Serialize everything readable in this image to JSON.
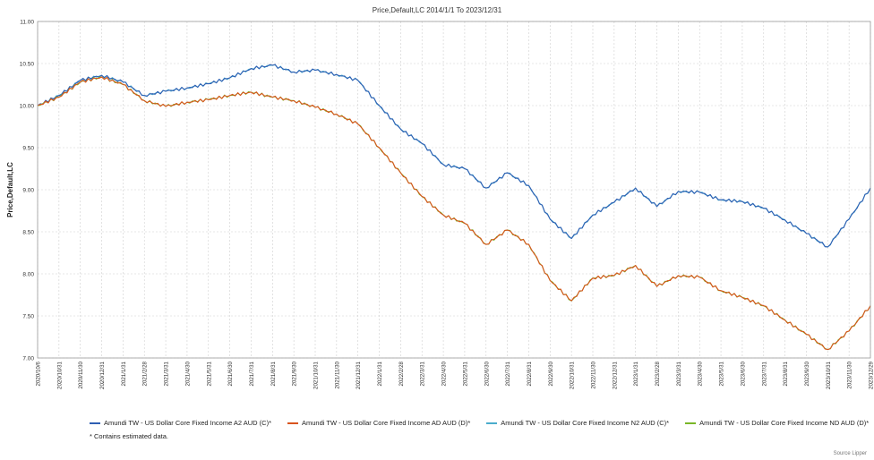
{
  "chart_data": {
    "type": "line",
    "title": "Price,Default,LC 2014/1/1 To 2023/12/31",
    "xlabel": "",
    "ylabel": "Price,Default,LC",
    "ylim": [
      7.0,
      11.0
    ],
    "yticks": [
      "11.00",
      "10.50",
      "10.00",
      "9.50",
      "9.00",
      "8.50",
      "8.00",
      "7.50",
      "7.00"
    ],
    "xticks": [
      "2020/10/6",
      "2020/10/31",
      "2020/11/30",
      "2020/12/31",
      "2021/1/31",
      "2021/2/28",
      "2021/3/31",
      "2021/4/30",
      "2021/5/31",
      "2021/6/30",
      "2021/7/31",
      "2021/8/31",
      "2021/9/30",
      "2021/10/31",
      "2021/11/30",
      "2021/12/31",
      "2022/1/31",
      "2022/2/28",
      "2022/3/31",
      "2022/4/30",
      "2022/5/31",
      "2022/6/30",
      "2022/7/31",
      "2022/8/31",
      "2022/9/30",
      "2022/10/31",
      "2022/11/30",
      "2022/12/31",
      "2023/1/31",
      "2023/2/28",
      "2023/3/31",
      "2023/4/30",
      "2023/5/31",
      "2023/6/30",
      "2023/7/31",
      "2023/8/31",
      "2023/9/30",
      "2023/10/31",
      "2023/11/30",
      "2023/12/29"
    ],
    "grid": true,
    "legend_position": "bottom",
    "x": [
      "2020/10/6",
      "2020/10/31",
      "2020/11/30",
      "2020/12/31",
      "2021/1/31",
      "2021/2/28",
      "2021/3/31",
      "2021/4/30",
      "2021/5/31",
      "2021/6/30",
      "2021/7/31",
      "2021/8/31",
      "2021/9/30",
      "2021/10/31",
      "2021/11/30",
      "2021/12/31",
      "2022/1/31",
      "2022/2/28",
      "2022/3/31",
      "2022/4/30",
      "2022/5/31",
      "2022/6/30",
      "2022/7/31",
      "2022/8/31",
      "2022/9/30",
      "2022/10/31",
      "2022/11/30",
      "2022/12/31",
      "2023/1/31",
      "2023/2/28",
      "2023/3/31",
      "2023/4/30",
      "2023/5/31",
      "2023/6/30",
      "2023/7/31",
      "2023/8/31",
      "2023/9/30",
      "2023/10/31",
      "2023/11/30",
      "2023/12/29"
    ],
    "series": [
      {
        "name": "Amundi TW - US Dollar Core Fixed Income A2 AUD (C)*",
        "color": "#2f5fb3",
        "values": [
          10.0,
          10.12,
          10.3,
          10.36,
          10.28,
          10.12,
          10.17,
          10.21,
          10.26,
          10.33,
          10.44,
          10.48,
          10.4,
          10.42,
          10.37,
          10.3,
          10.0,
          9.72,
          9.55,
          9.3,
          9.25,
          9.02,
          9.2,
          9.05,
          8.65,
          8.42,
          8.7,
          8.85,
          9.02,
          8.8,
          8.98,
          8.97,
          8.88,
          8.86,
          8.78,
          8.64,
          8.48,
          8.32,
          8.65,
          9.02
        ]
      },
      {
        "name": "Amundi TW - US Dollar Core Fixed Income AD AUD (D)*",
        "color": "#d9541e",
        "values": [
          10.0,
          10.1,
          10.28,
          10.34,
          10.25,
          10.06,
          9.99,
          10.04,
          10.07,
          10.12,
          10.16,
          10.1,
          10.06,
          9.98,
          9.9,
          9.78,
          9.5,
          9.2,
          8.92,
          8.7,
          8.6,
          8.35,
          8.52,
          8.35,
          7.92,
          7.68,
          7.95,
          7.98,
          8.1,
          7.85,
          7.98,
          7.96,
          7.8,
          7.72,
          7.62,
          7.45,
          7.28,
          7.1,
          7.32,
          7.62
        ]
      },
      {
        "name": "Amundi TW - US Dollar Core Fixed Income N2 AUD (C)*",
        "color": "#4aaccc",
        "values": [
          10.0,
          10.12,
          10.3,
          10.36,
          10.28,
          10.12,
          10.17,
          10.21,
          10.26,
          10.33,
          10.44,
          10.48,
          10.4,
          10.42,
          10.37,
          10.3,
          10.0,
          9.72,
          9.55,
          9.3,
          9.25,
          9.02,
          9.2,
          9.05,
          8.65,
          8.42,
          8.7,
          8.85,
          9.02,
          8.8,
          8.98,
          8.97,
          8.88,
          8.86,
          8.78,
          8.64,
          8.48,
          8.32,
          8.65,
          9.02
        ]
      },
      {
        "name": "Amundi TW - US Dollar Core Fixed Income ND AUD (D)*",
        "color": "#7ab628",
        "values": [
          10.0,
          10.1,
          10.28,
          10.34,
          10.25,
          10.06,
          9.99,
          10.04,
          10.07,
          10.12,
          10.16,
          10.1,
          10.06,
          9.98,
          9.9,
          9.78,
          9.5,
          9.2,
          8.92,
          8.7,
          8.6,
          8.35,
          8.52,
          8.35,
          7.92,
          7.68,
          7.95,
          7.98,
          8.1,
          7.85,
          7.98,
          7.96,
          7.8,
          7.72,
          7.62,
          7.45,
          7.28,
          7.1,
          7.32,
          7.62
        ]
      }
    ]
  },
  "legend": {
    "items": [
      "Amundi TW - US Dollar Core Fixed Income A2 AUD (C)*",
      "Amundi TW - US Dollar Core Fixed Income AD AUD (D)*",
      "Amundi TW - US Dollar Core Fixed Income N2 AUD (C)*",
      "Amundi TW - US Dollar Core Fixed Income ND AUD (D)*"
    ],
    "colors": [
      "#2f5fb3",
      "#d9541e",
      "#4aaccc",
      "#7ab628"
    ],
    "note": "*  Contains estimated data."
  },
  "source": "Source Lipper"
}
